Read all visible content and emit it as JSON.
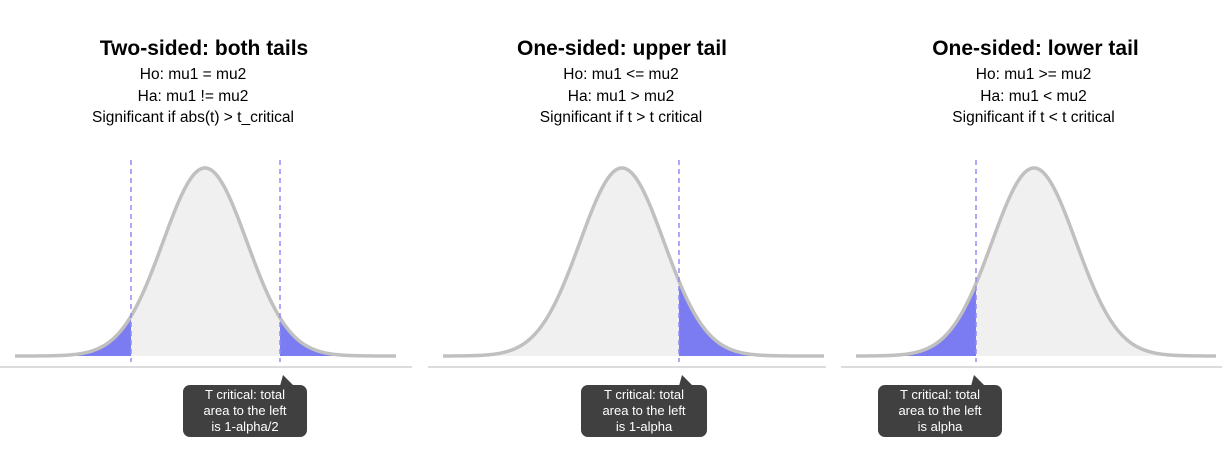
{
  "colors": {
    "curve": "#c0c0c0",
    "curve_fill": "#f0f0f0",
    "tail_fill": "#7b7bf2",
    "critical_line": "#8d8df5",
    "baseline": "#d0d0d0",
    "callout_bg": "#404040",
    "callout_text": "#ffffff"
  },
  "panels": [
    {
      "title": "Two-sided: both tails",
      "lines": [
        "Ho: mu1 = mu2",
        "Ha: mu1 != mu2",
        "Significant if abs(t) > t_critical"
      ],
      "callout_lines": [
        "T critical: total",
        "area to the left",
        "is 1-alpha/2"
      ],
      "shaded_tails": [
        "lower",
        "upper"
      ],
      "critical_lines": [
        "lower",
        "upper"
      ]
    },
    {
      "title": "One-sided: upper tail",
      "lines": [
        "Ho: mu1 <= mu2",
        "Ha: mu1 > mu2",
        "Significant if t > t critical"
      ],
      "callout_lines": [
        "T critical: total",
        "area to the left",
        "is 1-alpha"
      ],
      "shaded_tails": [
        "upper"
      ],
      "critical_lines": [
        "upper"
      ]
    },
    {
      "title": "One-sided: lower tail",
      "lines": [
        "Ho: mu1 >= mu2",
        "Ha: mu1 < mu2",
        "Significant if t < t critical"
      ],
      "callout_lines": [
        "T critical: total",
        "area to the left",
        "is alpha"
      ],
      "shaded_tails": [
        "lower"
      ],
      "critical_lines": [
        "lower"
      ]
    }
  ]
}
